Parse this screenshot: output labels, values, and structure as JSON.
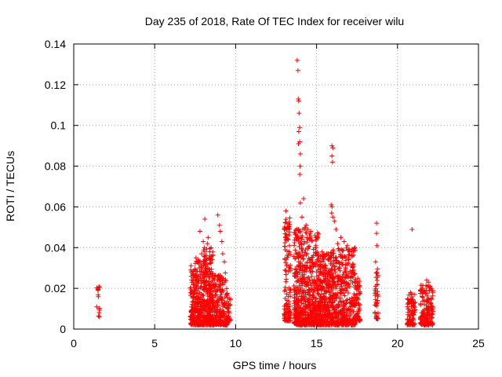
{
  "chart_data": {
    "type": "scatter",
    "title": "Day 235 of 2018, Rate Of TEC Index for receiver wilu",
    "xlabel": "GPS time / hours",
    "ylabel": "ROTI / TECUs",
    "xlim": [
      0,
      25
    ],
    "ylim": [
      0,
      0.14
    ],
    "x_ticks": [
      0,
      5,
      10,
      15,
      20,
      25
    ],
    "y_ticks": [
      0,
      0.02,
      0.04,
      0.06,
      0.08,
      0.1,
      0.12,
      0.14
    ],
    "x_tick_labels": [
      "0",
      "5",
      "10",
      "15",
      "20",
      "25"
    ],
    "y_tick_labels": [
      "0",
      "0.02",
      "0.04",
      "0.06",
      "0.08",
      "0.1",
      "0.12",
      "0.14"
    ],
    "grid": true,
    "marker": "+",
    "color": "#ff0000",
    "clusters": [
      {
        "x_range": [
          1.4,
          1.6
        ],
        "y_range": [
          0.006,
          0.021
        ],
        "count": 14
      },
      {
        "x_range": [
          7.2,
          8.0
        ],
        "y_range": [
          0.002,
          0.034
        ],
        "count": 280
      },
      {
        "x_range": [
          8.0,
          8.6
        ],
        "y_range": [
          0.002,
          0.04
        ],
        "count": 260
      },
      {
        "x_range": [
          8.6,
          9.5
        ],
        "y_range": [
          0.002,
          0.028
        ],
        "count": 220
      },
      {
        "x_range": [
          9.5,
          9.7
        ],
        "y_range": [
          0.004,
          0.016
        ],
        "count": 20
      },
      {
        "x_range": [
          13.0,
          13.4
        ],
        "y_range": [
          0.004,
          0.055
        ],
        "count": 120
      },
      {
        "x_range": [
          13.6,
          14.4
        ],
        "y_range": [
          0.002,
          0.05
        ],
        "count": 330
      },
      {
        "x_range": [
          14.4,
          15.2
        ],
        "y_range": [
          0.002,
          0.048
        ],
        "count": 300
      },
      {
        "x_range": [
          15.2,
          16.0
        ],
        "y_range": [
          0.002,
          0.038
        ],
        "count": 300
      },
      {
        "x_range": [
          16.0,
          17.4
        ],
        "y_range": [
          0.002,
          0.04
        ],
        "count": 380
      },
      {
        "x_range": [
          17.4,
          17.7
        ],
        "y_range": [
          0.004,
          0.025
        ],
        "count": 60
      },
      {
        "x_range": [
          18.6,
          18.8
        ],
        "y_range": [
          0.005,
          0.03
        ],
        "count": 40
      },
      {
        "x_range": [
          20.6,
          21.1
        ],
        "y_range": [
          0.002,
          0.018
        ],
        "count": 90
      },
      {
        "x_range": [
          21.4,
          22.2
        ],
        "y_range": [
          0.002,
          0.022
        ],
        "count": 160
      }
    ],
    "outliers": [
      [
        7.55,
        0.035
      ],
      [
        7.8,
        0.048
      ],
      [
        8.1,
        0.054
      ],
      [
        8.3,
        0.045
      ],
      [
        8.4,
        0.038
      ],
      [
        8.9,
        0.056
      ],
      [
        9.0,
        0.051
      ],
      [
        9.05,
        0.048
      ],
      [
        9.15,
        0.043
      ],
      [
        9.3,
        0.033
      ],
      [
        9.2,
        0.037
      ],
      [
        8.25,
        0.042
      ],
      [
        8.0,
        0.043
      ],
      [
        7.9,
        0.037
      ],
      [
        13.1,
        0.058
      ],
      [
        13.2,
        0.05
      ],
      [
        13.25,
        0.044
      ],
      [
        13.3,
        0.038
      ],
      [
        13.15,
        0.046
      ],
      [
        13.8,
        0.132
      ],
      [
        13.85,
        0.127
      ],
      [
        13.87,
        0.113
      ],
      [
        13.9,
        0.112
      ],
      [
        13.92,
        0.106
      ],
      [
        13.95,
        0.099
      ],
      [
        13.9,
        0.097
      ],
      [
        13.95,
        0.092
      ],
      [
        13.88,
        0.091
      ],
      [
        14.0,
        0.086
      ],
      [
        13.98,
        0.08
      ],
      [
        13.96,
        0.076
      ],
      [
        14.0,
        0.062
      ],
      [
        14.2,
        0.064
      ],
      [
        14.1,
        0.055
      ],
      [
        14.3,
        0.05
      ],
      [
        14.35,
        0.051
      ],
      [
        14.45,
        0.049
      ],
      [
        14.6,
        0.047
      ],
      [
        14.4,
        0.045
      ],
      [
        14.9,
        0.046
      ],
      [
        14.95,
        0.041
      ],
      [
        15.1,
        0.037
      ],
      [
        15.4,
        0.033
      ],
      [
        15.95,
        0.09
      ],
      [
        16.0,
        0.089
      ],
      [
        15.95,
        0.085
      ],
      [
        15.98,
        0.082
      ],
      [
        15.9,
        0.061
      ],
      [
        15.95,
        0.06
      ],
      [
        15.93,
        0.057
      ],
      [
        16.0,
        0.055
      ],
      [
        16.1,
        0.053
      ],
      [
        16.2,
        0.049
      ],
      [
        16.5,
        0.045
      ],
      [
        16.7,
        0.043
      ],
      [
        16.9,
        0.041
      ],
      [
        17.0,
        0.039
      ],
      [
        16.3,
        0.042
      ],
      [
        18.7,
        0.052
      ],
      [
        18.7,
        0.047
      ],
      [
        18.72,
        0.041
      ],
      [
        18.65,
        0.033
      ],
      [
        20.9,
        0.049
      ],
      [
        21.8,
        0.024
      ],
      [
        21.9,
        0.023
      ],
      [
        22.0,
        0.021
      ],
      [
        20.8,
        0.018
      ]
    ]
  }
}
